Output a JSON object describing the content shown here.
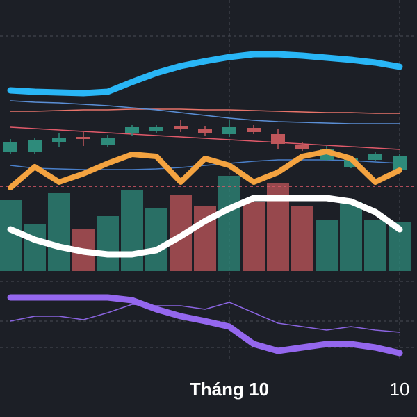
{
  "chart_data": [
    {
      "type": "candlestick",
      "categories": [
        null,
        null,
        null,
        null,
        null,
        null,
        null,
        null,
        null,
        "Tháng 10",
        null,
        null,
        null,
        null,
        null,
        null,
        "10"
      ],
      "open": [
        17.2,
        17.2,
        18.5,
        19.3,
        18.2,
        19.8,
        20.2,
        20.9,
        20.5,
        19.7,
        20.6,
        19.7,
        18.2,
        16.0,
        15.0,
        16.0,
        14.5
      ],
      "high": [
        19.0,
        19.2,
        19.8,
        20.0,
        19.6,
        21.0,
        21.0,
        21.8,
        20.8,
        21.8,
        21.0,
        20.5,
        18.5,
        18.0,
        16.5,
        17.2,
        16.8
      ],
      "low": [
        16.8,
        16.9,
        17.8,
        18.0,
        17.8,
        19.5,
        19.9,
        20.0,
        19.5,
        19.3,
        19.7,
        17.5,
        17.3,
        15.8,
        14.8,
        15.8,
        14.3
      ],
      "close": [
        18.5,
        18.8,
        19.2,
        19.0,
        19.2,
        20.7,
        20.7,
        20.4,
        19.8,
        20.7,
        20.0,
        18.3,
        17.6,
        17.5,
        16.2,
        16.8,
        16.5
      ],
      "up_color": "#2e8b7b",
      "down_color": "#c0575b",
      "ylim": [
        0,
        39
      ],
      "volume": {
        "axis": "y2",
        "values": [
          10.2,
          6.7,
          11.2,
          6.0,
          7.9,
          11.7,
          9.0,
          11.0,
          9.3,
          13.7,
          10.0,
          12.6,
          9.3,
          7.4,
          10.0,
          7.4,
          7.0
        ]
      },
      "y2lim": [
        0,
        39
      ],
      "lines": [
        {
          "color": "#e8746a",
          "width": 1.5,
          "values": [
            23.0,
            23.0,
            23.1,
            23.2,
            23.2,
            23.3,
            23.3,
            23.3,
            23.2,
            23.2,
            23.1,
            23.0,
            22.9,
            22.8,
            22.8,
            22.7,
            22.7
          ]
        },
        {
          "color": "#5b8fd6",
          "width": 1.5,
          "values": [
            24.5,
            24.3,
            24.2,
            24.0,
            23.8,
            23.5,
            23.2,
            22.8,
            22.4,
            22.0,
            21.7,
            21.5,
            21.4,
            21.3,
            21.2,
            21.2,
            21.2
          ]
        },
        {
          "color": "#e05a6a",
          "width": 1.5,
          "values": [
            20.7,
            20.5,
            20.3,
            20.1,
            19.9,
            19.7,
            19.5,
            19.3,
            19.1,
            18.9,
            18.7,
            18.5,
            18.3,
            18.1,
            17.9,
            17.7,
            17.5
          ]
        },
        {
          "color": "#4a7fc8",
          "width": 1.5,
          "values": [
            15.2,
            14.8,
            14.7,
            14.6,
            14.6,
            14.6,
            14.7,
            14.9,
            15.2,
            15.5,
            15.8,
            16.0,
            16.0,
            16.0,
            15.9,
            15.7,
            15.5
          ]
        },
        {
          "color": "#29b6f6",
          "width": 9,
          "values": [
            26.0,
            25.8,
            25.7,
            25.6,
            25.8,
            27.2,
            28.5,
            29.5,
            30.2,
            30.8,
            31.2,
            31.2,
            31.0,
            30.7,
            30.4,
            30.0,
            29.4
          ]
        },
        {
          "color": "#f4a340",
          "width": 8,
          "values": [
            12.0,
            15.0,
            12.8,
            14.0,
            15.5,
            16.8,
            16.5,
            12.8,
            16.2,
            15.2,
            12.8,
            14.2,
            16.5,
            17.2,
            16.2,
            12.8,
            14.5
          ]
        },
        {
          "color": "#ffffff",
          "width": 9,
          "values": [
            6.0,
            4.5,
            3.5,
            2.8,
            2.4,
            2.4,
            3.0,
            5.0,
            7.2,
            9.0,
            10.5,
            10.5,
            10.5,
            10.5,
            10.0,
            8.5,
            6.0
          ]
        }
      ],
      "price_line": {
        "value": 12.2,
        "color": "#e05a6a"
      }
    },
    {
      "type": "line",
      "ylim": [
        0,
        13
      ],
      "lines": [
        {
          "color": "#8a64e0",
          "width": 1.5,
          "values": [
            5.8,
            6.5,
            6.5,
            6.0,
            7.0,
            8.2,
            8.0,
            8.0,
            7.5,
            8.5,
            7.0,
            5.5,
            5.0,
            4.5,
            5.0,
            4.5,
            4.2
          ]
        },
        {
          "color": "#9467ee",
          "width": 9,
          "values": [
            9.2,
            9.2,
            9.2,
            9.2,
            9.2,
            8.8,
            7.5,
            6.5,
            5.8,
            5.0,
            2.5,
            1.5,
            2.0,
            2.5,
            2.5,
            2.0,
            1.2
          ]
        }
      ]
    }
  ]
}
